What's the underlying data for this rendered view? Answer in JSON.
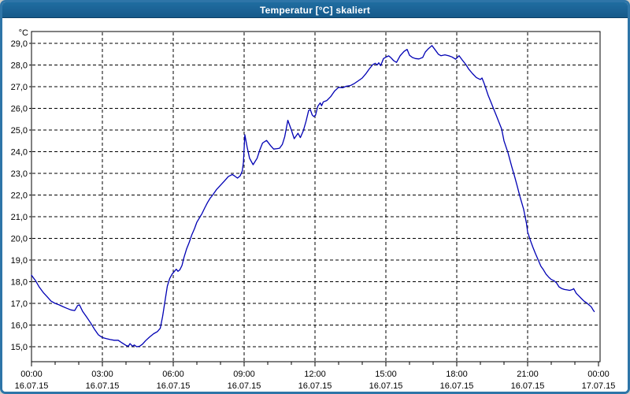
{
  "window": {
    "title": "Temperatur [°C] skaliert"
  },
  "colors": {
    "titlebar": "#1b6295",
    "window_border": "#2e75a8",
    "line": "#0000b4",
    "grid": "#000000",
    "background": "#ffffff"
  },
  "chart_data": {
    "type": "line",
    "title": "Temperatur [°C] skaliert",
    "series_name": "Temperatur",
    "xlabel": "",
    "ylabel": "°C",
    "unit_label": "°C",
    "grid": true,
    "legend": "none",
    "xlim_hours": [
      0,
      24
    ],
    "ylim": [
      14.3,
      29.6
    ],
    "yticks": [
      {
        "value": 29,
        "label": "29,0"
      },
      {
        "value": 28,
        "label": "28,0"
      },
      {
        "value": 27,
        "label": "27,0"
      },
      {
        "value": 26,
        "label": "26,0"
      },
      {
        "value": 25,
        "label": "25,0"
      },
      {
        "value": 24,
        "label": "24,0"
      },
      {
        "value": 23,
        "label": "23,0"
      },
      {
        "value": 22,
        "label": "22,0"
      },
      {
        "value": 21,
        "label": "21,0"
      },
      {
        "value": 20,
        "label": "20,0"
      },
      {
        "value": 19,
        "label": "19,0"
      },
      {
        "value": 18,
        "label": "18,0"
      },
      {
        "value": 17,
        "label": "17,0"
      },
      {
        "value": 16,
        "label": "16,0"
      },
      {
        "value": 15,
        "label": "15,0"
      }
    ],
    "xticks": [
      {
        "hour": 0,
        "time": "00:00",
        "date": "16.07.15"
      },
      {
        "hour": 3,
        "time": "03:00",
        "date": "16.07.15"
      },
      {
        "hour": 6,
        "time": "06:00",
        "date": "16.07.15"
      },
      {
        "hour": 9,
        "time": "09:00",
        "date": "16.07.15"
      },
      {
        "hour": 12,
        "time": "12:00",
        "date": "16.07.15"
      },
      {
        "hour": 15,
        "time": "15:00",
        "date": "16.07.15"
      },
      {
        "hour": 18,
        "time": "18:00",
        "date": "16.07.15"
      },
      {
        "hour": 21,
        "time": "21:00",
        "date": "16.07.15"
      },
      {
        "hour": 24,
        "time": "00:00",
        "date": "17.07.15"
      }
    ],
    "minor_tick_every_hours": 1,
    "points": [
      [
        0.0,
        18.3
      ],
      [
        0.17,
        18.05
      ],
      [
        0.33,
        17.75
      ],
      [
        0.5,
        17.5
      ],
      [
        0.67,
        17.3
      ],
      [
        0.83,
        17.1
      ],
      [
        1.0,
        17.0
      ],
      [
        1.17,
        16.93
      ],
      [
        1.33,
        16.85
      ],
      [
        1.5,
        16.77
      ],
      [
        1.67,
        16.7
      ],
      [
        1.83,
        16.67
      ],
      [
        1.95,
        16.9
      ],
      [
        2.03,
        16.93
      ],
      [
        2.17,
        16.62
      ],
      [
        2.33,
        16.38
      ],
      [
        2.5,
        16.1
      ],
      [
        2.67,
        15.8
      ],
      [
        2.83,
        15.55
      ],
      [
        3.0,
        15.42
      ],
      [
        3.17,
        15.37
      ],
      [
        3.33,
        15.33
      ],
      [
        3.5,
        15.3
      ],
      [
        3.67,
        15.3
      ],
      [
        3.83,
        15.18
      ],
      [
        4.0,
        15.06
      ],
      [
        4.1,
        15.02
      ],
      [
        4.17,
        15.14
      ],
      [
        4.28,
        15.02
      ],
      [
        4.35,
        15.08
      ],
      [
        4.45,
        15.0
      ],
      [
        4.58,
        15.02
      ],
      [
        4.7,
        15.12
      ],
      [
        4.83,
        15.28
      ],
      [
        5.0,
        15.45
      ],
      [
        5.17,
        15.6
      ],
      [
        5.33,
        15.7
      ],
      [
        5.45,
        15.85
      ],
      [
        5.55,
        16.4
      ],
      [
        5.65,
        17.1
      ],
      [
        5.75,
        17.8
      ],
      [
        5.85,
        18.15
      ],
      [
        5.95,
        18.35
      ],
      [
        6.05,
        18.48
      ],
      [
        6.13,
        18.58
      ],
      [
        6.2,
        18.48
      ],
      [
        6.28,
        18.55
      ],
      [
        6.37,
        18.75
      ],
      [
        6.45,
        19.1
      ],
      [
        6.56,
        19.5
      ],
      [
        6.67,
        19.8
      ],
      [
        6.78,
        20.15
      ],
      [
        6.9,
        20.45
      ],
      [
        7.0,
        20.75
      ],
      [
        7.11,
        20.95
      ],
      [
        7.22,
        21.15
      ],
      [
        7.33,
        21.4
      ],
      [
        7.45,
        21.65
      ],
      [
        7.56,
        21.85
      ],
      [
        7.67,
        22.0
      ],
      [
        7.83,
        22.25
      ],
      [
        8.0,
        22.45
      ],
      [
        8.17,
        22.65
      ],
      [
        8.33,
        22.85
      ],
      [
        8.5,
        22.95
      ],
      [
        8.61,
        22.87
      ],
      [
        8.72,
        22.78
      ],
      [
        8.83,
        22.88
      ],
      [
        8.92,
        23.1
      ],
      [
        8.97,
        23.5
      ],
      [
        9.03,
        24.78
      ],
      [
        9.13,
        24.2
      ],
      [
        9.23,
        23.7
      ],
      [
        9.38,
        23.4
      ],
      [
        9.55,
        23.7
      ],
      [
        9.67,
        24.1
      ],
      [
        9.78,
        24.4
      ],
      [
        9.95,
        24.52
      ],
      [
        10.12,
        24.28
      ],
      [
        10.25,
        24.12
      ],
      [
        10.4,
        24.14
      ],
      [
        10.5,
        24.16
      ],
      [
        10.62,
        24.34
      ],
      [
        10.72,
        24.7
      ],
      [
        10.85,
        25.45
      ],
      [
        11.0,
        25.0
      ],
      [
        11.12,
        24.6
      ],
      [
        11.28,
        24.85
      ],
      [
        11.38,
        24.65
      ],
      [
        11.5,
        24.95
      ],
      [
        11.62,
        25.4
      ],
      [
        11.73,
        25.9
      ],
      [
        11.8,
        25.95
      ],
      [
        11.88,
        25.7
      ],
      [
        11.95,
        25.62
      ],
      [
        12.02,
        25.68
      ],
      [
        12.12,
        26.1
      ],
      [
        12.22,
        26.25
      ],
      [
        12.28,
        26.12
      ],
      [
        12.35,
        26.3
      ],
      [
        12.5,
        26.36
      ],
      [
        12.67,
        26.55
      ],
      [
        12.83,
        26.8
      ],
      [
        13.0,
        26.97
      ],
      [
        13.17,
        26.95
      ],
      [
        13.33,
        27.02
      ],
      [
        13.5,
        27.05
      ],
      [
        13.67,
        27.15
      ],
      [
        13.83,
        27.27
      ],
      [
        14.0,
        27.4
      ],
      [
        14.17,
        27.62
      ],
      [
        14.3,
        27.82
      ],
      [
        14.45,
        28.02
      ],
      [
        14.55,
        28.08
      ],
      [
        14.63,
        28.0
      ],
      [
        14.7,
        28.1
      ],
      [
        14.78,
        27.97
      ],
      [
        14.9,
        28.3
      ],
      [
        15.03,
        28.38
      ],
      [
        15.12,
        28.42
      ],
      [
        15.22,
        28.33
      ],
      [
        15.33,
        28.2
      ],
      [
        15.45,
        28.12
      ],
      [
        15.6,
        28.42
      ],
      [
        15.77,
        28.63
      ],
      [
        15.9,
        28.72
      ],
      [
        16.0,
        28.45
      ],
      [
        16.12,
        28.35
      ],
      [
        16.25,
        28.3
      ],
      [
        16.4,
        28.28
      ],
      [
        16.56,
        28.35
      ],
      [
        16.67,
        28.6
      ],
      [
        16.78,
        28.73
      ],
      [
        16.95,
        28.9
      ],
      [
        17.1,
        28.68
      ],
      [
        17.22,
        28.5
      ],
      [
        17.33,
        28.43
      ],
      [
        17.5,
        28.47
      ],
      [
        17.67,
        28.42
      ],
      [
        17.8,
        28.37
      ],
      [
        17.95,
        28.27
      ],
      [
        18.1,
        28.43
      ],
      [
        18.22,
        28.25
      ],
      [
        18.4,
        28.0
      ],
      [
        18.5,
        27.82
      ],
      [
        18.67,
        27.6
      ],
      [
        18.83,
        27.42
      ],
      [
        19.0,
        27.33
      ],
      [
        19.07,
        27.4
      ],
      [
        19.17,
        27.12
      ],
      [
        19.33,
        26.6
      ],
      [
        19.45,
        26.28
      ],
      [
        19.56,
        25.98
      ],
      [
        19.67,
        25.68
      ],
      [
        19.78,
        25.38
      ],
      [
        19.9,
        25.05
      ],
      [
        20.0,
        24.5
      ],
      [
        20.17,
        23.95
      ],
      [
        20.33,
        23.3
      ],
      [
        20.45,
        22.85
      ],
      [
        20.55,
        22.45
      ],
      [
        20.67,
        21.95
      ],
      [
        20.83,
        21.35
      ],
      [
        20.95,
        20.7
      ],
      [
        21.0,
        20.3
      ],
      [
        21.12,
        19.9
      ],
      [
        21.22,
        19.6
      ],
      [
        21.33,
        19.3
      ],
      [
        21.45,
        19.0
      ],
      [
        21.56,
        18.72
      ],
      [
        21.67,
        18.55
      ],
      [
        21.78,
        18.35
      ],
      [
        21.9,
        18.2
      ],
      [
        22.0,
        18.1
      ],
      [
        22.12,
        18.04
      ],
      [
        22.22,
        17.95
      ],
      [
        22.33,
        17.76
      ],
      [
        22.45,
        17.68
      ],
      [
        22.56,
        17.64
      ],
      [
        22.67,
        17.62
      ],
      [
        22.78,
        17.6
      ],
      [
        22.9,
        17.64
      ],
      [
        22.95,
        17.68
      ],
      [
        23.06,
        17.46
      ],
      [
        23.17,
        17.34
      ],
      [
        23.28,
        17.22
      ],
      [
        23.39,
        17.1
      ],
      [
        23.5,
        17.02
      ],
      [
        23.61,
        16.92
      ],
      [
        23.7,
        16.83
      ],
      [
        23.77,
        16.7
      ],
      [
        23.82,
        16.62
      ]
    ]
  }
}
